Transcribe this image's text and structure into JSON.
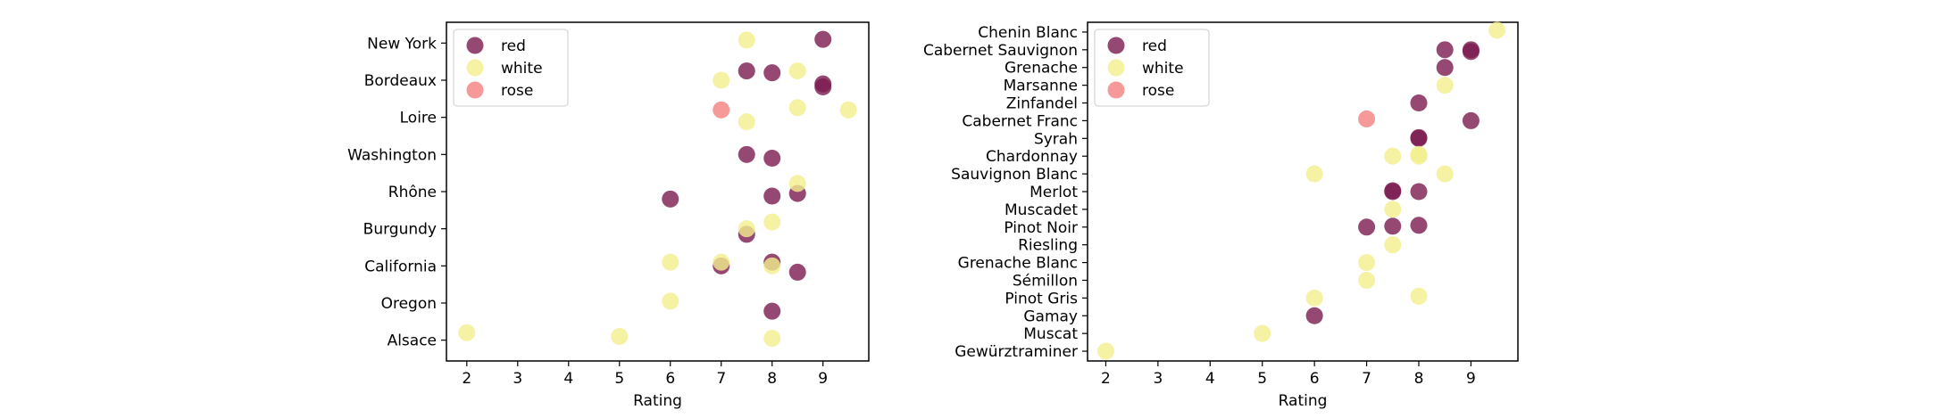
{
  "colors": {
    "red": "#7b1a4f",
    "white": "#f3ef8c",
    "rose": "#f47f7f"
  },
  "chart_data": [
    {
      "type": "scatter",
      "xlabel": "Rating",
      "ylabel": "",
      "xlim": [
        1.6,
        9.9
      ],
      "xticks": [
        2,
        3,
        4,
        5,
        6,
        7,
        8,
        9
      ],
      "categories": [
        "Alsace",
        "Oregon",
        "California",
        "Burgundy",
        "Rhône",
        "Washington",
        "Loire",
        "Bordeaux",
        "New York"
      ],
      "legend": {
        "position": "top-left",
        "entries": [
          "red",
          "white",
          "rose"
        ]
      },
      "series": [
        {
          "name": "red",
          "points": [
            {
              "x": 9,
              "y": "New York",
              "j": 0.1
            },
            {
              "x": 7.5,
              "y": "Bordeaux",
              "j": 0.25
            },
            {
              "x": 8,
              "y": "Bordeaux",
              "j": 0.2
            },
            {
              "x": 9,
              "y": "Bordeaux",
              "j": -0.1
            },
            {
              "x": 9,
              "y": "Bordeaux",
              "j": -0.18
            },
            {
              "x": 7.5,
              "y": "Washington",
              "j": 0.0
            },
            {
              "x": 8,
              "y": "Washington",
              "j": -0.1
            },
            {
              "x": 6,
              "y": "Rhône",
              "j": -0.2
            },
            {
              "x": 8,
              "y": "Rhône",
              "j": -0.12
            },
            {
              "x": 8.5,
              "y": "Rhône",
              "j": -0.05
            },
            {
              "x": 7.5,
              "y": "Burgundy",
              "j": -0.15
            },
            {
              "x": 7,
              "y": "California",
              "j": 0.0
            },
            {
              "x": 8,
              "y": "California",
              "j": 0.1
            },
            {
              "x": 8.5,
              "y": "California",
              "j": -0.17
            },
            {
              "x": 8,
              "y": "Oregon",
              "j": -0.22
            }
          ]
        },
        {
          "name": "white",
          "points": [
            {
              "x": 7.5,
              "y": "New York",
              "j": 0.08
            },
            {
              "x": 8.5,
              "y": "Bordeaux",
              "j": 0.25
            },
            {
              "x": 7,
              "y": "Bordeaux",
              "j": 0.0
            },
            {
              "x": 7.5,
              "y": "Loire",
              "j": -0.12
            },
            {
              "x": 8.5,
              "y": "Loire",
              "j": 0.26
            },
            {
              "x": 9.5,
              "y": "Loire",
              "j": 0.2
            },
            {
              "x": 8.5,
              "y": "Rhône",
              "j": 0.22
            },
            {
              "x": 7.5,
              "y": "Burgundy",
              "j": 0.0
            },
            {
              "x": 8,
              "y": "Burgundy",
              "j": 0.18
            },
            {
              "x": 6,
              "y": "California",
              "j": 0.1
            },
            {
              "x": 7,
              "y": "California",
              "j": 0.1
            },
            {
              "x": 8,
              "y": "California",
              "j": 0.0
            },
            {
              "x": 6,
              "y": "Oregon",
              "j": 0.05
            },
            {
              "x": 2,
              "y": "Alsace",
              "j": 0.2
            },
            {
              "x": 5,
              "y": "Alsace",
              "j": 0.1
            },
            {
              "x": 8,
              "y": "Alsace",
              "j": 0.05
            }
          ]
        },
        {
          "name": "rose",
          "points": [
            {
              "x": 7,
              "y": "Loire",
              "j": 0.2
            }
          ]
        }
      ]
    },
    {
      "type": "scatter",
      "xlabel": "Rating",
      "ylabel": "",
      "xlim": [
        1.65,
        9.9
      ],
      "xticks": [
        2,
        3,
        4,
        5,
        6,
        7,
        8,
        9
      ],
      "categories": [
        "Gewürztraminer",
        "Muscat",
        "Gamay",
        "Pinot Gris",
        "Sémillon",
        "Grenache Blanc",
        "Riesling",
        "Pinot Noir",
        "Muscadet",
        "Merlot",
        "Sauvignon Blanc",
        "Chardonnay",
        "Syrah",
        "Cabernet Franc",
        "Zinfandel",
        "Marsanne",
        "Grenache",
        "Cabernet Sauvignon",
        "Chenin Blanc"
      ],
      "legend": {
        "position": "top-left",
        "entries": [
          "red",
          "white",
          "rose"
        ]
      },
      "series": [
        {
          "name": "red",
          "points": [
            {
              "x": 8.5,
              "y": "Cabernet Sauvignon",
              "j": 0.0
            },
            {
              "x": 9,
              "y": "Cabernet Sauvignon",
              "j": 0.0
            },
            {
              "x": 9,
              "y": "Cabernet Sauvignon",
              "j": -0.1
            },
            {
              "x": 8.5,
              "y": "Grenache",
              "j": 0.0
            },
            {
              "x": 8,
              "y": "Zinfandel",
              "j": 0.0
            },
            {
              "x": 9,
              "y": "Cabernet Franc",
              "j": 0.0
            },
            {
              "x": 8,
              "y": "Syrah",
              "j": 0.0
            },
            {
              "x": 8,
              "y": "Syrah",
              "j": 0.05
            },
            {
              "x": 7.5,
              "y": "Merlot",
              "j": 0.0
            },
            {
              "x": 7.5,
              "y": "Merlot",
              "j": 0.05
            },
            {
              "x": 8,
              "y": "Merlot",
              "j": 0.0
            },
            {
              "x": 7,
              "y": "Pinot Noir",
              "j": 0.0
            },
            {
              "x": 7.5,
              "y": "Pinot Noir",
              "j": 0.05
            },
            {
              "x": 8,
              "y": "Pinot Noir",
              "j": 0.1
            },
            {
              "x": 6,
              "y": "Gamay",
              "j": 0.0
            }
          ]
        },
        {
          "name": "white",
          "points": [
            {
              "x": 9.5,
              "y": "Chenin Blanc",
              "j": 0.1
            },
            {
              "x": 8.5,
              "y": "Marsanne",
              "j": 0.0
            },
            {
              "x": 7.5,
              "y": "Chardonnay",
              "j": 0.0
            },
            {
              "x": 8,
              "y": "Chardonnay",
              "j": 0.0
            },
            {
              "x": 8,
              "y": "Chardonnay",
              "j": 0.1
            },
            {
              "x": 6,
              "y": "Sauvignon Blanc",
              "j": 0.0
            },
            {
              "x": 8.5,
              "y": "Sauvignon Blanc",
              "j": 0.0
            },
            {
              "x": 7.5,
              "y": "Muscadet",
              "j": 0.0
            },
            {
              "x": 7.5,
              "y": "Riesling",
              "j": 0.0
            },
            {
              "x": 7,
              "y": "Grenache Blanc",
              "j": 0.0
            },
            {
              "x": 7,
              "y": "Sémillon",
              "j": 0.0
            },
            {
              "x": 6,
              "y": "Pinot Gris",
              "j": 0.0
            },
            {
              "x": 8,
              "y": "Pinot Gris",
              "j": 0.1
            },
            {
              "x": 5,
              "y": "Muscat",
              "j": 0.0
            },
            {
              "x": 2,
              "y": "Gewürztraminer",
              "j": 0.0
            }
          ]
        },
        {
          "name": "rose",
          "points": [
            {
              "x": 7,
              "y": "Cabernet Franc",
              "j": 0.1
            }
          ]
        }
      ]
    }
  ]
}
